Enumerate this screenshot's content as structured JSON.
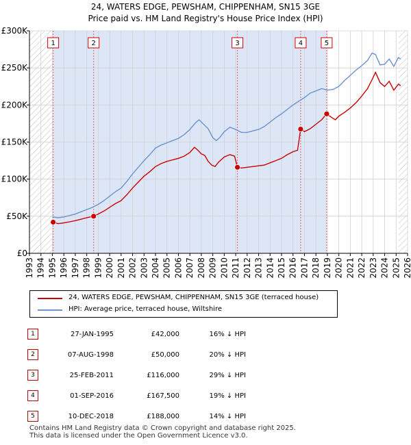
{
  "title_line1": "24, WATERS EDGE, PEWSHAM, CHIPPENHAM, SN15 3GE",
  "title_line2": "Price paid vs. HM Land Registry's House Price Index (HPI)",
  "colors": {
    "property": "#cc0000",
    "hpi": "#6b92cf",
    "shade": "#dde6f6",
    "hatch": "#bbbbbb",
    "vline": "#e06060"
  },
  "chart_data": {
    "type": "line",
    "title": "24, WATERS EDGE, PEWSHAM, CHIPPENHAM, SN15 3GE",
    "subtitle": "Price paid vs. HM Land Registry's House Price Index (HPI)",
    "xlabel": "",
    "ylabel": "",
    "xlim": [
      1993,
      2026
    ],
    "ylim": [
      0,
      300000
    ],
    "x_ticks": [
      1993,
      1994,
      1995,
      1996,
      1997,
      1998,
      1999,
      2000,
      2001,
      2002,
      2003,
      2004,
      2005,
      2006,
      2007,
      2008,
      2009,
      2010,
      2011,
      2012,
      2013,
      2014,
      2015,
      2016,
      2017,
      2018,
      2019,
      2020,
      2021,
      2022,
      2023,
      2024,
      2025,
      2026
    ],
    "y_ticks": [
      0,
      50000,
      100000,
      150000,
      200000,
      250000,
      300000
    ],
    "y_tick_labels": [
      "£0",
      "£50K",
      "£100K",
      "£150K",
      "£200K",
      "£250K",
      "£300K"
    ],
    "grid": true,
    "series": [
      {
        "name": "24, WATERS EDGE, PEWSHAM, CHIPPENHAM, SN15 3GE (terraced house)",
        "x": [
          1995.07,
          1995.5,
          1996.0,
          1996.5,
          1997.0,
          1997.5,
          1998.0,
          1998.6,
          1999.0,
          1999.5,
          2000.0,
          2000.5,
          2001.0,
          2001.5,
          2002.0,
          2002.5,
          2003.0,
          2003.5,
          2004.0,
          2004.5,
          2005.0,
          2005.5,
          2006.0,
          2006.5,
          2007.0,
          2007.4,
          2007.7,
          2008.0,
          2008.3,
          2008.6,
          2008.9,
          2009.2,
          2009.5,
          2010.0,
          2010.5,
          2010.9,
          2011.15,
          2011.5,
          2012.0,
          2012.5,
          2013.0,
          2013.5,
          2014.0,
          2014.5,
          2015.0,
          2015.5,
          2016.0,
          2016.4,
          2016.67,
          2017.0,
          2017.5,
          2018.0,
          2018.5,
          2018.94,
          2019.3,
          2019.7,
          2020.0,
          2020.5,
          2021.0,
          2021.5,
          2022.0,
          2022.5,
          2022.9,
          2023.2,
          2023.6,
          2024.0,
          2024.4,
          2024.8,
          2025.2,
          2025.4
        ],
        "values": [
          42000,
          40000,
          41000,
          42500,
          44000,
          46000,
          48000,
          50000,
          53000,
          57000,
          62000,
          67000,
          71000,
          79000,
          88000,
          96000,
          104000,
          110000,
          117000,
          121000,
          124000,
          126000,
          128000,
          131000,
          136000,
          143000,
          139000,
          134000,
          132000,
          124000,
          119000,
          117000,
          123000,
          130000,
          133000,
          131000,
          116000,
          115000,
          116000,
          117000,
          118000,
          119000,
          122000,
          125000,
          128000,
          133000,
          137000,
          139000,
          167500,
          164000,
          168000,
          174000,
          180000,
          188000,
          184000,
          180000,
          185000,
          190000,
          196000,
          203000,
          212000,
          222000,
          234000,
          244000,
          230000,
          225000,
          232000,
          220000,
          228000,
          226000
        ]
      },
      {
        "name": "HPI: Average price, terraced house, Wiltshire",
        "x": [
          1995.0,
          1995.5,
          1996.0,
          1996.5,
          1997.0,
          1997.5,
          1998.0,
          1998.5,
          1999.0,
          1999.5,
          2000.0,
          2000.5,
          2001.0,
          2001.5,
          2002.0,
          2002.5,
          2003.0,
          2003.5,
          2004.0,
          2004.5,
          2005.0,
          2005.5,
          2006.0,
          2006.5,
          2007.0,
          2007.5,
          2007.8,
          2008.2,
          2008.6,
          2009.0,
          2009.3,
          2009.6,
          2010.0,
          2010.5,
          2011.0,
          2011.5,
          2012.0,
          2012.5,
          2013.0,
          2013.5,
          2014.0,
          2014.5,
          2015.0,
          2015.5,
          2016.0,
          2016.5,
          2017.0,
          2017.5,
          2018.0,
          2018.5,
          2019.0,
          2019.5,
          2020.0,
          2020.5,
          2021.0,
          2021.5,
          2022.0,
          2022.5,
          2022.9,
          2023.2,
          2023.6,
          2024.0,
          2024.4,
          2024.8,
          2025.2,
          2025.4
        ],
        "values": [
          49000,
          48000,
          49000,
          51000,
          53000,
          56000,
          59000,
          62000,
          66000,
          71000,
          77000,
          83000,
          88000,
          97000,
          107000,
          116000,
          125000,
          133000,
          142000,
          146000,
          149000,
          152000,
          155000,
          160000,
          167000,
          176000,
          180000,
          174000,
          168000,
          156000,
          152000,
          156000,
          164000,
          170000,
          167000,
          163000,
          163000,
          165000,
          167000,
          171000,
          177000,
          183000,
          188000,
          194000,
          200000,
          205000,
          210000,
          216000,
          219000,
          222000,
          220000,
          221000,
          225000,
          233000,
          240000,
          247000,
          253000,
          260000,
          270000,
          268000,
          254000,
          255000,
          262000,
          252000,
          264000,
          262000
        ]
      }
    ],
    "sales": [
      {
        "label": "1",
        "x": 1995.07,
        "y": 42000
      },
      {
        "label": "2",
        "x": 1998.6,
        "y": 50000
      },
      {
        "label": "3",
        "x": 2011.15,
        "y": 116000
      },
      {
        "label": "4",
        "x": 2016.67,
        "y": 167500
      },
      {
        "label": "5",
        "x": 2018.94,
        "y": 188000
      }
    ],
    "legend_position": "below"
  },
  "legend": {
    "property_label": "24, WATERS EDGE, PEWSHAM, CHIPPENHAM, SN15 3GE (terraced house)",
    "hpi_label": "HPI: Average price, terraced house, Wiltshire"
  },
  "table": [
    {
      "num": "1",
      "date": "27-JAN-1995",
      "price": "£42,000",
      "hpi": "16% ↓ HPI"
    },
    {
      "num": "2",
      "date": "07-AUG-1998",
      "price": "£50,000",
      "hpi": "20% ↓ HPI"
    },
    {
      "num": "3",
      "date": "25-FEB-2011",
      "price": "£116,000",
      "hpi": "29% ↓ HPI"
    },
    {
      "num": "4",
      "date": "01-SEP-2016",
      "price": "£167,500",
      "hpi": "19% ↓ HPI"
    },
    {
      "num": "5",
      "date": "10-DEC-2018",
      "price": "£188,000",
      "hpi": "14% ↓ HPI"
    }
  ],
  "footer": {
    "line1": "Contains HM Land Registry data © Crown copyright and database right 2025.",
    "line2": "This data is licensed under the Open Government Licence v3.0."
  }
}
